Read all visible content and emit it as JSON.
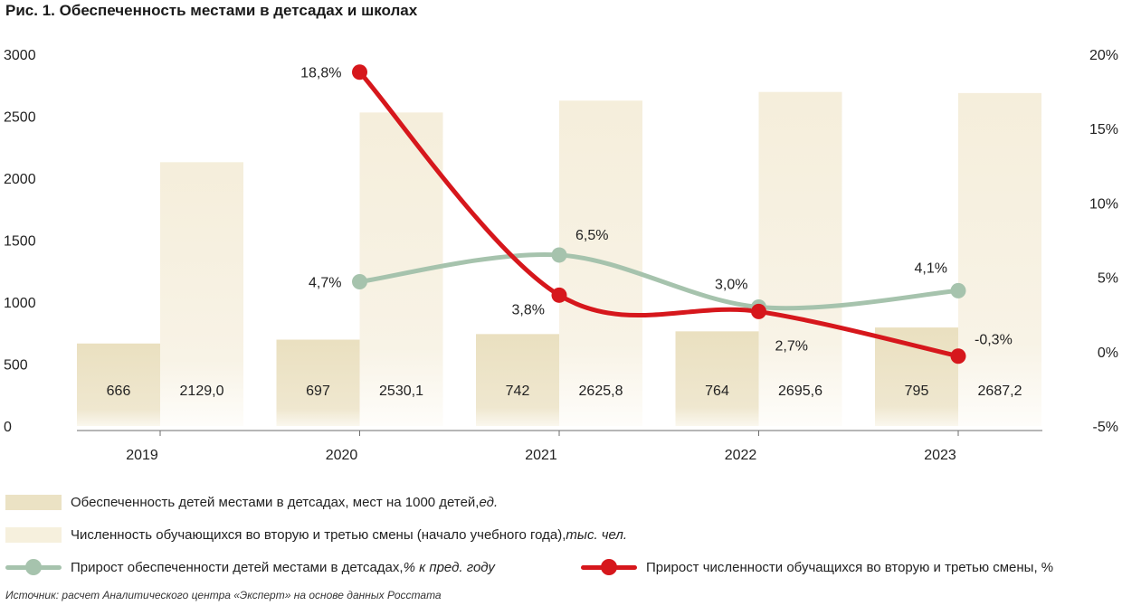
{
  "figure": {
    "title": "Рис. 1. Обеспеченность местами в детсадах и школах",
    "source": "Источник: расчет Аналитического центра «Эксперт» на основе данных Росстата"
  },
  "legend": {
    "bar1": {
      "text": "Обеспеченность детей местами в детсадах, мест на 1000 детей, ",
      "unit": "ед."
    },
    "bar2": {
      "text": "Численность обучающихся во вторую и третью смены (начало учебного года), ",
      "unit": "тыс. чел."
    },
    "line1": {
      "text": "Прирост обеспеченности детей местами в детсадах, ",
      "unit": "% к пред. году"
    },
    "line2": {
      "text": "Прирост численности обучащихся во вторую и третью смены, %"
    }
  },
  "colors": {
    "bar_kindergarten": "#ebe2c4",
    "bar_school": "#f6f0dd",
    "line_kindergarten": "#a6c3ad",
    "line_school": "#d6171c"
  },
  "chart_data": {
    "type": "bar",
    "categories": [
      "2019",
      "2020",
      "2021",
      "2022",
      "2023"
    ],
    "left_axis": {
      "ylim": [
        0,
        3000
      ],
      "ticks": [
        "0",
        "500",
        "1000",
        "1500",
        "2000",
        "2500",
        "3000"
      ]
    },
    "right_axis": {
      "ylim": [
        -5,
        20
      ],
      "ticks": [
        "-5%",
        "0%",
        "5%",
        "10%",
        "15%",
        "20%"
      ]
    },
    "bar_series": [
      {
        "values": [
          666,
          697,
          742,
          764,
          795
        ],
        "labels": [
          "666",
          "697",
          "742",
          "764",
          "795"
        ]
      },
      {
        "values": [
          2129.0,
          2530.1,
          2625.8,
          2695.6,
          2687.2
        ],
        "labels": [
          "2129,0",
          "2530,1",
          "2625,8",
          "2695,6",
          "2687,2"
        ]
      }
    ],
    "line_series": [
      {
        "axis": "right",
        "x": [
          "2020",
          "2021",
          "2022",
          "2023"
        ],
        "values": [
          4.7,
          6.5,
          3.0,
          4.1
        ],
        "labels": [
          "4,7%",
          "6,5%",
          "3,0%",
          "4,1%"
        ]
      },
      {
        "axis": "right",
        "x": [
          "2020",
          "2021",
          "2022",
          "2023"
        ],
        "values": [
          18.8,
          3.8,
          2.7,
          -0.3
        ],
        "labels": [
          "18,8%",
          "3,8%",
          "2,7%",
          "-0,3%"
        ]
      }
    ]
  }
}
